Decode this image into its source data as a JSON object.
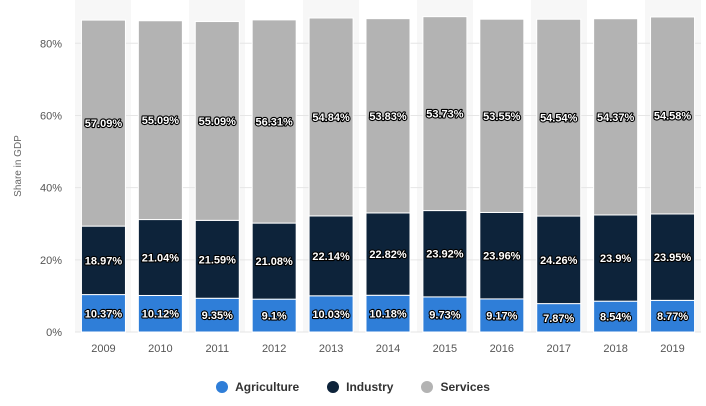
{
  "chart_data": {
    "type": "bar",
    "stacked": true,
    "categories": [
      "2009",
      "2010",
      "2011",
      "2012",
      "2013",
      "2014",
      "2015",
      "2016",
      "2017",
      "2018",
      "2019"
    ],
    "series": [
      {
        "name": "Agriculture",
        "color": "#2f7ed8",
        "values": [
          10.37,
          10.12,
          9.35,
          9.1,
          10.03,
          10.18,
          9.73,
          9.17,
          7.87,
          8.54,
          8.77
        ],
        "labels": [
          "10.37%",
          "10.12%",
          "9.35%",
          "9.1%",
          "10.03%",
          "10.18%",
          "9.73%",
          "9.17%",
          "7.87%",
          "8.54%",
          "8.77%"
        ]
      },
      {
        "name": "Industry",
        "color": "#0d233a",
        "values": [
          18.97,
          21.04,
          21.59,
          21.08,
          22.14,
          22.82,
          23.92,
          23.96,
          24.26,
          23.9,
          23.95
        ],
        "labels": [
          "18.97%",
          "21.04%",
          "21.59%",
          "21.08%",
          "22.14%",
          "22.82%",
          "23.92%",
          "23.96%",
          "24.26%",
          "23.9%",
          "23.95%"
        ]
      },
      {
        "name": "Services",
        "color": "#b3b3b3",
        "values": [
          57.09,
          55.09,
          55.09,
          56.31,
          54.84,
          53.83,
          53.73,
          53.55,
          54.54,
          54.37,
          54.58
        ],
        "labels": [
          "57.09%",
          "55.09%",
          "55.09%",
          "56.31%",
          "54.84%",
          "53.83%",
          "53.73%",
          "53.55%",
          "54.54%",
          "54.37%",
          "54.58%"
        ]
      }
    ],
    "ylabel": "Share in GDP",
    "ylim": [
      0,
      92
    ],
    "yticks": [
      0,
      20,
      40,
      60,
      80
    ],
    "ytick_labels": [
      "0%",
      "20%",
      "40%",
      "60%",
      "80%"
    ],
    "grid": true,
    "legend_position": "bottom"
  }
}
